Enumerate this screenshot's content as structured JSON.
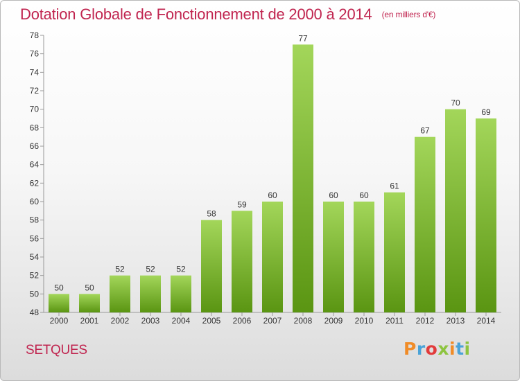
{
  "title": {
    "main": "Dotation Globale de Fonctionnement de 2000 à 2014",
    "unit": "(en milliers d'€)"
  },
  "commune": "SETQUES",
  "logo": {
    "text": "Proxiti",
    "colors": [
      "#f08c28",
      "#4aa3d8",
      "#e23b3b",
      "#8dc43f",
      "#f08c28",
      "#4aa3d8",
      "#8dc43f"
    ]
  },
  "colors": {
    "title": "#c0244f",
    "bar_top": "#a3d65a",
    "bar_bottom": "#5a9512"
  },
  "chart_data": {
    "type": "bar",
    "categories": [
      "2000",
      "2001",
      "2002",
      "2003",
      "2004",
      "2005",
      "2006",
      "2007",
      "2008",
      "2009",
      "2010",
      "2011",
      "2012",
      "2013",
      "2014"
    ],
    "values": [
      50,
      50,
      52,
      52,
      52,
      58,
      59,
      60,
      77,
      60,
      60,
      61,
      67,
      70,
      69
    ],
    "ylim": [
      48,
      78
    ],
    "yticks": [
      48,
      50,
      52,
      54,
      56,
      58,
      60,
      62,
      64,
      66,
      68,
      70,
      72,
      74,
      76,
      78
    ],
    "grid": false,
    "data_labels": true
  }
}
